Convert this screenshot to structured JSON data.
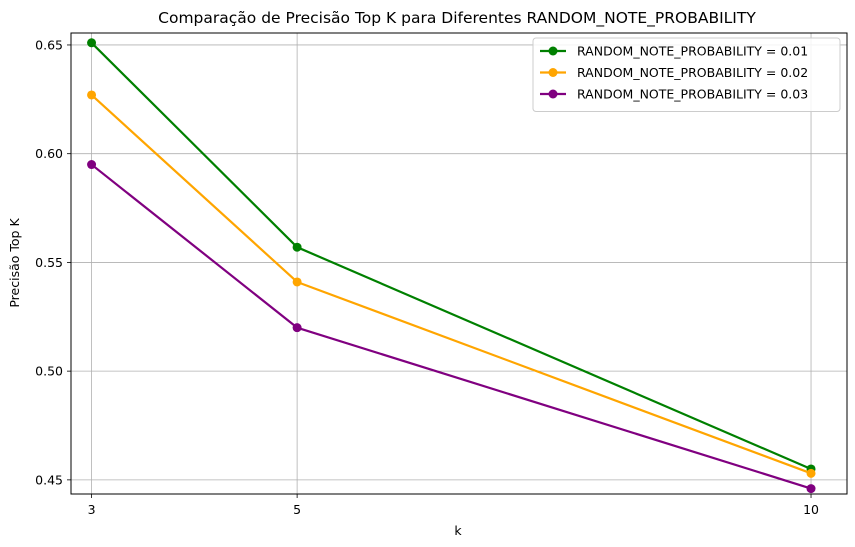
{
  "chart_data": {
    "type": "line",
    "title": "Comparação de Precisão Top K para Diferentes RANDOM_NOTE_PROBABILITY",
    "xlabel": "k",
    "ylabel": "Precisão Top K",
    "x": [
      3,
      5,
      10
    ],
    "xticks": [
      "3",
      "5",
      "10"
    ],
    "yticks": [
      "0.45",
      "0.50",
      "0.55",
      "0.60",
      "0.65"
    ],
    "xlim": [
      2.8,
      10.35
    ],
    "ylim": [
      0.4435,
      0.6555
    ],
    "grid": true,
    "legend_position": "top-right",
    "series": [
      {
        "name": "RANDOM_NOTE_PROBABILITY = 0.01",
        "color": "#008000",
        "values": [
          0.651,
          0.557,
          0.455
        ]
      },
      {
        "name": "RANDOM_NOTE_PROBABILITY = 0.02",
        "color": "#FFA500",
        "values": [
          0.627,
          0.541,
          0.453
        ]
      },
      {
        "name": "RANDOM_NOTE_PROBABILITY = 0.03",
        "color": "#800080",
        "values": [
          0.595,
          0.52,
          0.446
        ]
      }
    ]
  }
}
